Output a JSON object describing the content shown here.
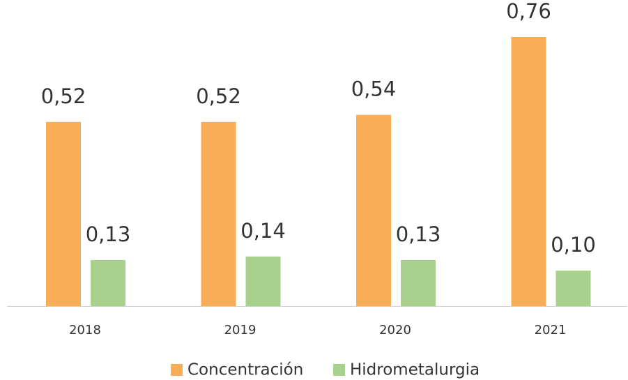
{
  "chart_data": {
    "type": "bar",
    "categories": [
      "2018",
      "2019",
      "2020",
      "2021"
    ],
    "series": [
      {
        "name": "Concentración",
        "color": "#f8ad56",
        "values": [
          0.52,
          0.52,
          0.54,
          0.76
        ],
        "value_labels": [
          "0,52",
          "0,52",
          "0,54",
          "0,76"
        ]
      },
      {
        "name": "Hidrometalurgia",
        "color": "#a9d18e",
        "values": [
          0.13,
          0.14,
          0.13,
          0.1
        ],
        "value_labels": [
          "0,13",
          "0,14",
          "0,13",
          "0,10"
        ]
      }
    ],
    "legend": "bottom"
  }
}
